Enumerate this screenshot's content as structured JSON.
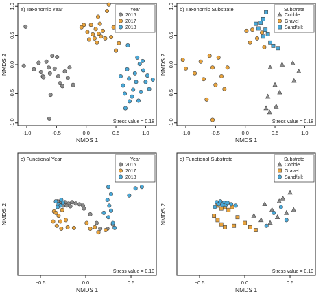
{
  "chart_data": [
    {
      "type": "scatter",
      "panel_label": "a) Taxonomic Year",
      "xlabel": "NMDS 1",
      "ylabel": "NMDS 2",
      "xlim": [
        -1.15,
        1.18
      ],
      "ylim": [
        -1.05,
        1.05
      ],
      "xticks": [
        -1.0,
        -0.5,
        0.0,
        0.5,
        1.0
      ],
      "xtick_labels": [
        "-1.0",
        "-0.5",
        "0.0",
        "0.5",
        "1.0"
      ],
      "yticks": [
        -1.0,
        -0.5,
        0.0,
        0.5,
        1.0
      ],
      "ytick_labels": [
        "-1.0",
        "-0.5",
        "0.0",
        "0.5",
        "1.0"
      ],
      "legend": {
        "title": "Year",
        "position": "top-right"
      },
      "stress": "Stress value = 0.18",
      "series": [
        {
          "name": "2016",
          "color": "#8c8c8c",
          "shape": "circle",
          "points": [
            [
              -1.02,
              0.65
            ],
            [
              -1.05,
              -0.02
            ],
            [
              -0.88,
              -0.08
            ],
            [
              -0.8,
              0.03
            ],
            [
              -0.76,
              -0.13
            ],
            [
              -0.73,
              -0.2
            ],
            [
              -0.67,
              0.05
            ],
            [
              -0.63,
              -0.05
            ],
            [
              -0.61,
              -0.15
            ],
            [
              -0.57,
              0.15
            ],
            [
              -0.53,
              -0.07
            ],
            [
              -0.49,
              0.13
            ],
            [
              -0.47,
              -0.2
            ],
            [
              -0.44,
              -0.32
            ],
            [
              -0.4,
              -0.37
            ],
            [
              -0.36,
              -0.12
            ],
            [
              -0.31,
              -0.23
            ],
            [
              -0.28,
              -0.05
            ],
            [
              -0.22,
              -0.35
            ],
            [
              -0.6,
              -0.52
            ],
            [
              -0.62,
              -0.93
            ],
            [
              -0.72,
              -0.22
            ]
          ]
        },
        {
          "name": "2017",
          "color": "#e8a33d",
          "shape": "circle",
          "points": [
            [
              -0.04,
              0.68
            ],
            [
              0.02,
              0.56
            ],
            [
              0.05,
              0.43
            ],
            [
              0.08,
              0.68
            ],
            [
              0.11,
              0.52
            ],
            [
              0.14,
              0.45
            ],
            [
              0.16,
              0.61
            ],
            [
              0.18,
              0.38
            ],
            [
              0.21,
              0.53
            ],
            [
              0.23,
              0.7
            ],
            [
              0.25,
              0.48
            ],
            [
              0.28,
              0.58
            ],
            [
              0.32,
              0.45
            ],
            [
              0.35,
              0.92
            ],
            [
              0.38,
              1.03
            ],
            [
              0.42,
              0.47
            ],
            [
              0.46,
              0.64
            ],
            [
              0.5,
              0.24
            ],
            [
              0.55,
              0.37
            ],
            [
              -0.08,
              0.64
            ],
            [
              0.2,
              0.82
            ]
          ]
        },
        {
          "name": "2018",
          "color": "#49a8d8",
          "shape": "circle",
          "points": [
            [
              0.7,
              0.33
            ],
            [
              0.86,
              0.12
            ],
            [
              0.95,
              0.06
            ],
            [
              0.58,
              -0.2
            ],
            [
              0.62,
              -0.36
            ],
            [
              0.65,
              -0.5
            ],
            [
              0.66,
              -0.75
            ],
            [
              0.69,
              -0.08
            ],
            [
              0.72,
              -0.24
            ],
            [
              0.73,
              -0.63
            ],
            [
              0.79,
              -0.43
            ],
            [
              0.82,
              -0.15
            ],
            [
              0.84,
              -0.3
            ],
            [
              0.88,
              -0.62
            ],
            [
              0.9,
              0.01
            ],
            [
              0.92,
              -0.47
            ],
            [
              1.0,
              -0.3
            ],
            [
              1.03,
              -0.19
            ],
            [
              1.06,
              -0.42
            ],
            [
              1.12,
              -0.26
            ],
            [
              0.77,
              -0.55
            ],
            [
              0.96,
              -0.1
            ]
          ]
        }
      ]
    },
    {
      "type": "scatter",
      "panel_label": "b) Taxonomic Substrate",
      "xlabel": "NMDS 1",
      "ylabel": "NMDS 2",
      "xlim": [
        -1.15,
        1.18
      ],
      "ylim": [
        -1.05,
        1.05
      ],
      "xticks": [
        -1.0,
        -0.5,
        0.0,
        0.5,
        1.0
      ],
      "xtick_labels": [
        "-1.0",
        "-0.5",
        "0.0",
        "0.5",
        "1.0"
      ],
      "yticks": [
        -1.0,
        -0.5,
        0.0,
        0.5,
        1.0
      ],
      "ytick_labels": [
        "-1.0",
        "-0.5",
        "0.0",
        "0.5",
        "1.0"
      ],
      "legend": {
        "title": "Substrate",
        "position": "top-right"
      },
      "stress": "Stress value = 0.18",
      "series": [
        {
          "name": "Cobble",
          "color": "#8c8c8c",
          "shape": "triangle",
          "points": [
            [
              0.62,
              0.0
            ],
            [
              0.8,
              0.02
            ],
            [
              0.42,
              -0.05
            ],
            [
              0.5,
              -0.35
            ],
            [
              0.58,
              -0.48
            ],
            [
              0.38,
              -0.55
            ],
            [
              0.52,
              -0.72
            ],
            [
              0.35,
              -0.75
            ],
            [
              0.41,
              -0.82
            ],
            [
              0.9,
              -0.12
            ],
            [
              0.82,
              -0.28
            ]
          ]
        },
        {
          "name": "Gravel",
          "color": "#e8a33d",
          "shape": "circle",
          "points": [
            [
              -1.05,
              0.08
            ],
            [
              -1.0,
              -0.07
            ],
            [
              -0.85,
              -0.15
            ],
            [
              -0.75,
              0.05
            ],
            [
              -0.7,
              -0.25
            ],
            [
              -0.6,
              0.15
            ],
            [
              -0.55,
              -0.05
            ],
            [
              -0.5,
              -0.35
            ],
            [
              -0.45,
              0.12
            ],
            [
              -0.4,
              -0.2
            ],
            [
              -0.35,
              -0.42
            ],
            [
              -0.3,
              -0.05
            ],
            [
              -0.65,
              -0.6
            ],
            [
              -0.55,
              -0.95
            ],
            [
              0.12,
              0.6
            ],
            [
              0.2,
              0.45
            ],
            [
              0.28,
              0.55
            ],
            [
              0.32,
              0.3
            ],
            [
              0.02,
              0.58
            ],
            [
              0.08,
              0.38
            ]
          ]
        },
        {
          "name": "Sand/silt",
          "color": "#49a8d8",
          "shape": "square",
          "points": [
            [
              0.18,
              0.7
            ],
            [
              0.22,
              0.62
            ],
            [
              0.26,
              0.72
            ],
            [
              0.3,
              0.48
            ],
            [
              0.34,
              0.6
            ],
            [
              0.38,
              0.52
            ],
            [
              0.35,
              0.9
            ],
            [
              0.42,
              0.38
            ],
            [
              0.47,
              0.32
            ],
            [
              0.55,
              0.28
            ],
            [
              0.3,
              0.78
            ]
          ]
        }
      ]
    },
    {
      "type": "scatter",
      "panel_label": "c) Functional Year",
      "xlabel": "NMDS 1",
      "ylabel": "NMDS 2",
      "xlim": [
        -0.75,
        0.78
      ],
      "ylim": [
        -0.85,
        0.85
      ],
      "xticks": [
        -0.5,
        0.0,
        0.5
      ],
      "xtick_labels": [
        "−0.5",
        "0.0",
        "0.5"
      ],
      "yticks": [],
      "ytick_labels": [],
      "legend": {
        "title": "Year",
        "position": "top-right"
      },
      "stress": "Stress value = 0.10",
      "series": [
        {
          "name": "2016",
          "color": "#8c8c8c",
          "shape": "circle",
          "points": [
            [
              -0.31,
              0.18
            ],
            [
              -0.27,
              0.17
            ],
            [
              -0.23,
              0.17
            ],
            [
              -0.19,
              0.15
            ],
            [
              -0.15,
              0.17
            ],
            [
              -0.11,
              0.15
            ],
            [
              -0.07,
              0.14
            ],
            [
              -0.03,
              0.12
            ],
            [
              -0.29,
              0.13
            ],
            [
              -0.25,
              0.12
            ],
            [
              -0.21,
              0.12
            ],
            [
              -0.17,
              0.11
            ],
            [
              -0.02,
              0.08
            ],
            [
              0.05,
              0.0
            ],
            [
              0.12,
              -0.12
            ],
            [
              0.16,
              -0.2
            ],
            [
              0.24,
              -0.2
            ],
            [
              0.3,
              -0.14
            ]
          ]
        },
        {
          "name": "2017",
          "color": "#e8a33d",
          "shape": "circle",
          "points": [
            [
              -0.35,
              0.04
            ],
            [
              -0.3,
              -0.02
            ],
            [
              -0.26,
              0.06
            ],
            [
              -0.36,
              -0.1
            ],
            [
              -0.32,
              -0.16
            ],
            [
              -0.28,
              -0.1
            ],
            [
              -0.22,
              -0.08
            ],
            [
              -0.2,
              -0.18
            ],
            [
              -0.27,
              -0.2
            ],
            [
              -0.13,
              -0.19
            ],
            [
              0.01,
              -0.12
            ],
            [
              0.1,
              -0.18
            ],
            [
              0.14,
              -0.25
            ],
            [
              0.22,
              -0.22
            ],
            [
              0.05,
              -0.2
            ],
            [
              -0.33,
              0.02
            ]
          ]
        },
        {
          "name": "2018",
          "color": "#49a8d8",
          "shape": "circle",
          "points": [
            [
              -0.33,
              0.18
            ],
            [
              -0.3,
              0.14
            ],
            [
              -0.28,
              0.12
            ],
            [
              -0.25,
              0.16
            ],
            [
              -0.31,
              0.1
            ],
            [
              0.25,
              0.38
            ],
            [
              0.28,
              0.28
            ],
            [
              0.24,
              0.2
            ],
            [
              0.26,
              0.12
            ],
            [
              0.28,
              0.05
            ],
            [
              0.25,
              -0.04
            ],
            [
              0.3,
              -0.12
            ],
            [
              0.32,
              -0.19
            ],
            [
              0.55,
              0.36
            ],
            [
              0.62,
              0.38
            ],
            [
              0.48,
              0.26
            ],
            [
              0.2,
              0.02
            ],
            [
              -0.27,
              0.2
            ]
          ]
        }
      ]
    },
    {
      "type": "scatter",
      "panel_label": "d) Functional Substrate",
      "xlabel": "NMDS 1",
      "ylabel": "NMDS 2",
      "xlim": [
        -0.75,
        0.78
      ],
      "ylim": [
        -0.85,
        0.85
      ],
      "xticks": [
        -0.5,
        0.0,
        0.5
      ],
      "xtick_labels": [
        "−0.5",
        "0.0",
        "0.5"
      ],
      "yticks": [],
      "ytick_labels": [],
      "legend": {
        "title": "Substrate",
        "position": "top-right"
      },
      "stress": "Stress value = 0.10",
      "series": [
        {
          "name": "Cobble",
          "color": "#8c8c8c",
          "shape": "triangle",
          "points": [
            [
              0.5,
              0.3
            ],
            [
              0.42,
              0.22
            ],
            [
              0.38,
              0.18
            ],
            [
              0.22,
              0.14
            ],
            [
              0.3,
              0.06
            ],
            [
              0.46,
              0.02
            ],
            [
              0.54,
              0.06
            ],
            [
              0.36,
              -0.04
            ],
            [
              0.28,
              -0.12
            ],
            [
              0.18,
              -0.08
            ],
            [
              0.1,
              -0.02
            ]
          ]
        },
        {
          "name": "Gravel",
          "color": "#e8a33d",
          "shape": "square",
          "points": [
            [
              -0.3,
              0.12
            ],
            [
              -0.26,
              0.08
            ],
            [
              -0.22,
              0.1
            ],
            [
              -0.18,
              0.06
            ],
            [
              -0.14,
              0.1
            ],
            [
              -0.34,
              -0.02
            ],
            [
              -0.3,
              -0.08
            ],
            [
              -0.26,
              -0.14
            ],
            [
              -0.22,
              -0.18
            ],
            [
              -0.12,
              -0.16
            ],
            [
              0.0,
              -0.12
            ],
            [
              0.06,
              -0.18
            ],
            [
              0.12,
              -0.22
            ],
            [
              -0.08,
              -0.04
            ]
          ]
        },
        {
          "name": "Sand/silt",
          "color": "#49a8d8",
          "shape": "circle",
          "points": [
            [
              -0.31,
              0.17
            ],
            [
              -0.27,
              0.18
            ],
            [
              -0.23,
              0.16
            ],
            [
              -0.29,
              0.14
            ],
            [
              -0.25,
              0.13
            ],
            [
              -0.21,
              0.13
            ],
            [
              -0.33,
              0.1
            ],
            [
              -0.19,
              0.16
            ],
            [
              -0.15,
              0.14
            ],
            [
              -0.1,
              0.12
            ],
            [
              0.4,
              0.1
            ],
            [
              0.32,
              0.02
            ],
            [
              0.46,
              -0.08
            ],
            [
              0.24,
              -0.16
            ]
          ]
        }
      ]
    }
  ]
}
